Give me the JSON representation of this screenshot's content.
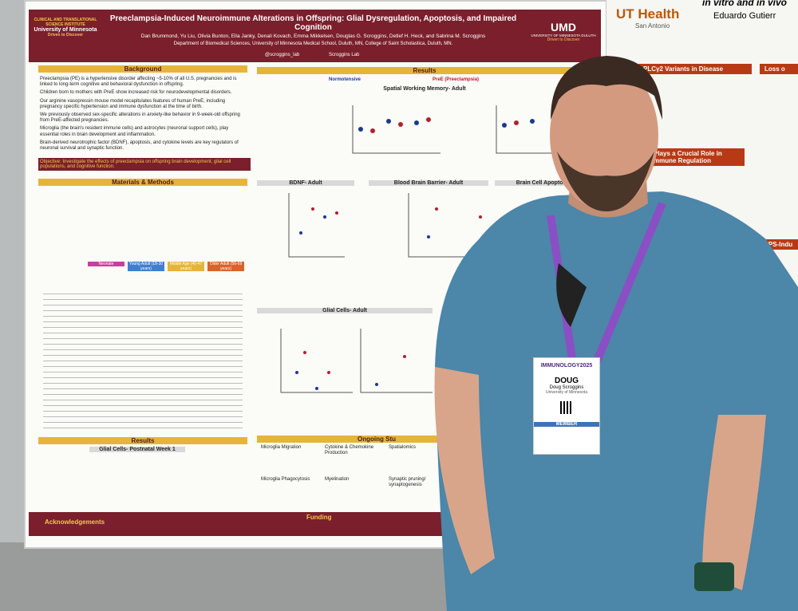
{
  "poster": {
    "title": "Preeclampsia-Induced Neuroimmune Alterations in Offspring: Glial Dysregulation, Apoptosis, and Impaired Cognition",
    "authors": "Dan Brummond, Yu Liu, Olivia Bunton, Ella Janky, Denali Kovach, Emma Mikkelsen, Douglas G. Scroggins, Detlef H. Heck, and Sabrina M. Scroggins",
    "affiliations": "Department of Biomedical Sciences, University of Minnesota Medical School, Duluth, MN, College of Saint Scholastica, Duluth, MN.",
    "handles": [
      "@scroggins_lab",
      "Scroggins Lab"
    ],
    "left_logo": [
      "CLINICAL AND TRANSLATIONAL SCIENCE INSTITUTE",
      "University of Minnesota",
      "Driven to Discover"
    ],
    "right_logo": [
      "UMD",
      "UNIVERSITY OF MINNESOTA DULUTH",
      "Driven to Discover"
    ],
    "left_sections": [
      "Background",
      "Materials & Methods",
      "Results"
    ],
    "background_points": [
      "Preeclampsia (PE) is a hypertensive disorder affecting ~5-10% of all U.S. pregnancies and is linked to long-term cognitive and behavioral dysfunction in offspring.",
      "Children born to mothers with PreE show increased risk for neurodevelopmental disorders.",
      "Our arginine vasopressin mouse model recapitulates features of human PreE, including pregnancy specific hypertension and immune dysfunction at the time of birth.",
      "We previously observed sex-specific alterations in anxiety-like behavior in 9-week-old offspring from PreE-affected pregnancies.",
      "Microglia (the brain's resident immune cells) and astrocytes (neuronal support cells), play essential roles in brain development and inflammation.",
      "Brain-derived neurotrophic factor (BDNF), apoptosis, and cytokine levels are key regulators of neuronal survival and synaptic function."
    ],
    "objective": "Objective: Investigate the effects of preeclampsia on offspring brain development, glial cell populations, and cognitive function.",
    "timeline": [
      "Neonate",
      "Young Adult (18-30 years)",
      "Middle Age (40-47 years)",
      "Older Adult (56-69 years)"
    ],
    "middle_header": "Results",
    "legend": [
      "Normotensive",
      "PreE (Preeclampsia)"
    ],
    "panels": [
      "Spatial Working Memory- Adult",
      "BDNF- Adult",
      "Blood Brain Barrier- Adult",
      "Brain Cell Apoptosis",
      "Glial Cells- Adult",
      "Ongoing Stu"
    ],
    "results_left": "Glial Cells- Postnatal Week 1",
    "ongoing": [
      "Microglia Migration",
      "Cytokine & Chemokine Production",
      "Spatialomics",
      "Microglia Phagocytosis",
      "Myelination",
      "Synaptic pruning/ synaptogenesis"
    ],
    "footer": [
      "Acknowledgements",
      "Funding"
    ]
  },
  "right_poster": {
    "heading": "in vitro and in vivo",
    "author": "Eduardo Gutierr",
    "logo": "UT Health",
    "logo_sub": "San Antonio",
    "sections": [
      "PLCγ2 Variants in Disease",
      "Plays a Crucial Role in",
      "mmune Regulation",
      "Loss o",
      "LPS-Indu"
    ]
  },
  "badge": {
    "event": "IMMUNOLOGY2025",
    "name": "DOUG",
    "full_name": "Doug Scroggins",
    "org": "University of Minnesota",
    "tag": "MEMBER"
  }
}
